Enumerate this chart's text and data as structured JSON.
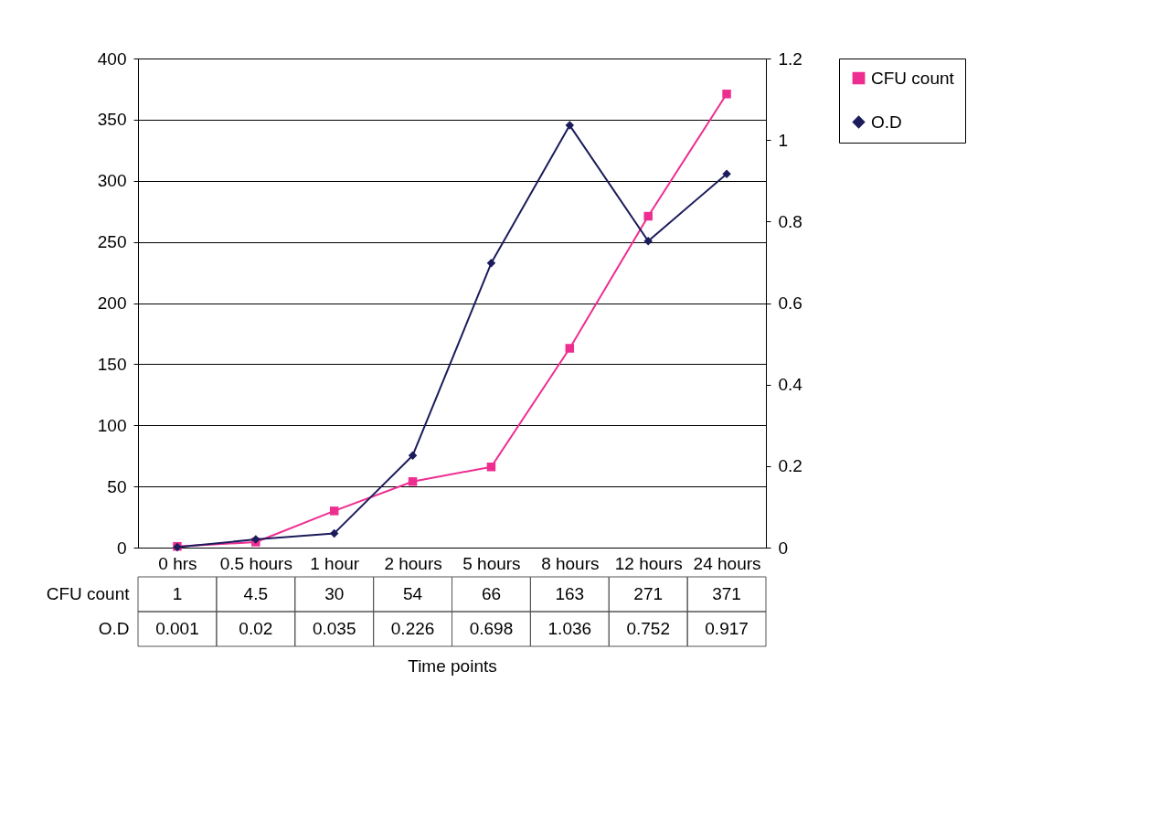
{
  "chart_data": {
    "type": "line",
    "xlabel": "Time points",
    "categories": [
      "0 hrs",
      "0.5 hours",
      "1 hour",
      "2 hours",
      "5 hours",
      "8 hours",
      "12 hours",
      "24 hours"
    ],
    "series": [
      {
        "name": "CFU count",
        "color": "#ee2d90",
        "marker": "square",
        "values": [
          1,
          4.5,
          30,
          54,
          66,
          163,
          271,
          371
        ]
      },
      {
        "name": "O.D",
        "color": "#1c1c5c",
        "marker": "diamond",
        "axis": "y2",
        "values": [
          0.001,
          0.02,
          0.035,
          0.226,
          0.698,
          1.036,
          0.752,
          0.917
        ]
      }
    ],
    "ylim": [
      0,
      400
    ],
    "yticks": [
      0,
      50,
      100,
      150,
      200,
      250,
      300,
      350,
      400
    ],
    "y2lim": [
      0,
      1.2
    ],
    "y2ticks": [
      0,
      0.2,
      0.4,
      0.6,
      0.8,
      1,
      1.2
    ],
    "grid": "y",
    "legend": "right",
    "data_labels": true,
    "line_style": "solid"
  }
}
